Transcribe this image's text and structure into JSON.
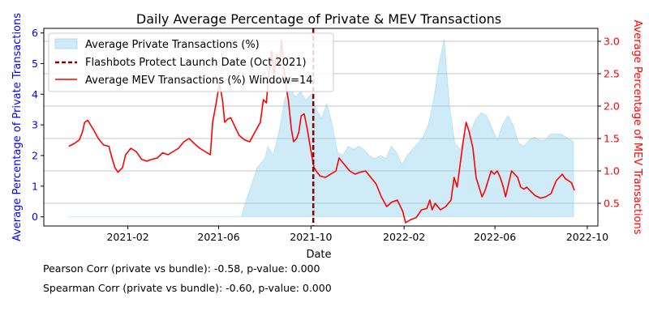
{
  "chart_data": {
    "type": "line",
    "title": "Daily Average Percentage of Private & MEV Transactions",
    "xlabel": "Date",
    "ylabel_left": "Average Percentage of Private Transactions",
    "ylabel_right": "Average Percentage of MEV Transactions",
    "left_axis_color": "#0000ff",
    "right_axis_color": "#ff0000",
    "xlim": [
      "2020-10-13",
      "2022-10-15"
    ],
    "ylim_left": [
      -0.3,
      6.15
    ],
    "ylim_right": [
      0.15,
      3.2
    ],
    "x_ticks": [
      "2021-02-01",
      "2021-06-01",
      "2021-10-01",
      "2022-02-01",
      "2022-06-01",
      "2022-10-01"
    ],
    "x_tick_labels": [
      "2021-02",
      "2021-06",
      "2021-10",
      "2022-02",
      "2022-06",
      "2022-10"
    ],
    "y_ticks_left": [
      0,
      1,
      2,
      3,
      4,
      5,
      6
    ],
    "y_ticks_right": [
      0.5,
      1.0,
      1.5,
      2.0,
      2.5,
      3.0
    ],
    "grid": "horizontal lines at right-axis ticks",
    "legend_position": "top-left",
    "series": [
      {
        "name": "Average Private Transactions (%)",
        "kind": "area",
        "axis": "left",
        "color": "#87ceeb",
        "alpha": 0.4,
        "points": [
          [
            "2020-11-15",
            0.0
          ],
          [
            "2021-07-01",
            0.0
          ],
          [
            "2021-07-08",
            0.6
          ],
          [
            "2021-07-15",
            1.1
          ],
          [
            "2021-07-22",
            1.6
          ],
          [
            "2021-08-01",
            1.9
          ],
          [
            "2021-08-05",
            2.3
          ],
          [
            "2021-08-12",
            2.0
          ],
          [
            "2021-08-20",
            2.8
          ],
          [
            "2021-08-27",
            3.8
          ],
          [
            "2021-09-03",
            4.3
          ],
          [
            "2021-09-10",
            3.9
          ],
          [
            "2021-09-17",
            4.1
          ],
          [
            "2021-09-24",
            3.8
          ],
          [
            "2021-10-01",
            4.0
          ],
          [
            "2021-10-08",
            3.5
          ],
          [
            "2021-10-15",
            3.2
          ],
          [
            "2021-10-22",
            3.7
          ],
          [
            "2021-10-29",
            3.0
          ],
          [
            "2021-11-05",
            2.1
          ],
          [
            "2021-11-12",
            2.0
          ],
          [
            "2021-11-19",
            2.3
          ],
          [
            "2021-11-26",
            2.2
          ],
          [
            "2021-12-03",
            2.3
          ],
          [
            "2021-12-10",
            2.2
          ],
          [
            "2021-12-17",
            2.0
          ],
          [
            "2021-12-24",
            1.9
          ],
          [
            "2022-01-01",
            2.0
          ],
          [
            "2022-01-08",
            1.9
          ],
          [
            "2022-01-15",
            2.3
          ],
          [
            "2022-01-22",
            2.1
          ],
          [
            "2022-01-29",
            1.7
          ],
          [
            "2022-02-05",
            2.0
          ],
          [
            "2022-02-12",
            2.2
          ],
          [
            "2022-02-19",
            2.4
          ],
          [
            "2022-02-26",
            2.6
          ],
          [
            "2022-03-05",
            3.0
          ],
          [
            "2022-03-12",
            3.8
          ],
          [
            "2022-03-19",
            5.0
          ],
          [
            "2022-03-26",
            5.8
          ],
          [
            "2022-04-02",
            3.6
          ],
          [
            "2022-04-09",
            2.4
          ],
          [
            "2022-04-16",
            2.2
          ],
          [
            "2022-04-23",
            2.7
          ],
          [
            "2022-04-30",
            2.8
          ],
          [
            "2022-05-07",
            3.2
          ],
          [
            "2022-05-14",
            3.4
          ],
          [
            "2022-05-21",
            3.3
          ],
          [
            "2022-05-28",
            2.9
          ],
          [
            "2022-06-04",
            2.5
          ],
          [
            "2022-06-11",
            3.0
          ],
          [
            "2022-06-18",
            3.3
          ],
          [
            "2022-06-25",
            3.0
          ],
          [
            "2022-07-02",
            2.4
          ],
          [
            "2022-07-09",
            2.3
          ],
          [
            "2022-07-16",
            2.5
          ],
          [
            "2022-07-23",
            2.6
          ],
          [
            "2022-07-30",
            2.5
          ],
          [
            "2022-08-06",
            2.5
          ],
          [
            "2022-08-13",
            2.7
          ],
          [
            "2022-08-20",
            2.7
          ],
          [
            "2022-08-27",
            2.7
          ],
          [
            "2022-09-03",
            2.6
          ],
          [
            "2022-09-10",
            2.5
          ],
          [
            "2022-09-13",
            2.45
          ]
        ]
      },
      {
        "name": "Average MEV Transactions (%) Window=14",
        "kind": "line",
        "axis": "right",
        "color": "#ff0000",
        "points": [
          [
            "2020-11-15",
            1.38
          ],
          [
            "2020-11-22",
            1.42
          ],
          [
            "2020-11-29",
            1.48
          ],
          [
            "2020-12-03",
            1.6
          ],
          [
            "2020-12-06",
            1.75
          ],
          [
            "2020-12-10",
            1.78
          ],
          [
            "2020-12-17",
            1.65
          ],
          [
            "2020-12-24",
            1.5
          ],
          [
            "2020-12-31",
            1.4
          ],
          [
            "2021-01-07",
            1.38
          ],
          [
            "2021-01-11",
            1.2
          ],
          [
            "2021-01-15",
            1.05
          ],
          [
            "2021-01-19",
            0.98
          ],
          [
            "2021-01-25",
            1.05
          ],
          [
            "2021-01-29",
            1.25
          ],
          [
            "2021-02-05",
            1.35
          ],
          [
            "2021-02-12",
            1.3
          ],
          [
            "2021-02-19",
            1.18
          ],
          [
            "2021-02-26",
            1.15
          ],
          [
            "2021-03-05",
            1.18
          ],
          [
            "2021-03-12",
            1.2
          ],
          [
            "2021-03-19",
            1.28
          ],
          [
            "2021-03-26",
            1.25
          ],
          [
            "2021-04-02",
            1.3
          ],
          [
            "2021-04-09",
            1.35
          ],
          [
            "2021-04-16",
            1.45
          ],
          [
            "2021-04-23",
            1.5
          ],
          [
            "2021-04-30",
            1.42
          ],
          [
            "2021-05-07",
            1.35
          ],
          [
            "2021-05-14",
            1.3
          ],
          [
            "2021-05-21",
            1.25
          ],
          [
            "2021-05-24",
            1.75
          ],
          [
            "2021-05-28",
            2.0
          ],
          [
            "2021-06-02",
            2.35
          ],
          [
            "2021-06-06",
            2.1
          ],
          [
            "2021-06-09",
            1.75
          ],
          [
            "2021-06-13",
            1.8
          ],
          [
            "2021-06-17",
            1.82
          ],
          [
            "2021-06-21",
            1.72
          ],
          [
            "2021-06-28",
            1.55
          ],
          [
            "2021-07-05",
            1.48
          ],
          [
            "2021-07-12",
            1.45
          ],
          [
            "2021-07-19",
            1.6
          ],
          [
            "2021-07-26",
            1.75
          ],
          [
            "2021-07-30",
            2.1
          ],
          [
            "2021-08-03",
            2.05
          ],
          [
            "2021-08-07",
            2.6
          ],
          [
            "2021-08-10",
            2.85
          ],
          [
            "2021-08-13",
            2.5
          ],
          [
            "2021-08-17",
            2.8
          ],
          [
            "2021-08-20",
            2.6
          ],
          [
            "2021-08-23",
            3.02
          ],
          [
            "2021-08-26",
            2.6
          ],
          [
            "2021-08-29",
            2.3
          ],
          [
            "2021-09-01",
            2.1
          ],
          [
            "2021-09-05",
            1.65
          ],
          [
            "2021-09-08",
            1.45
          ],
          [
            "2021-09-12",
            1.5
          ],
          [
            "2021-09-15",
            1.6
          ],
          [
            "2021-09-18",
            1.85
          ],
          [
            "2021-09-22",
            1.88
          ],
          [
            "2021-09-26",
            1.65
          ],
          [
            "2021-10-01",
            1.3
          ],
          [
            "2021-10-05",
            1.05
          ],
          [
            "2021-10-09",
            0.98
          ],
          [
            "2021-10-13",
            0.92
          ],
          [
            "2021-10-20",
            0.9
          ],
          [
            "2021-10-27",
            0.95
          ],
          [
            "2021-11-03",
            1.0
          ],
          [
            "2021-11-07",
            1.2
          ],
          [
            "2021-11-14",
            1.1
          ],
          [
            "2021-11-21",
            1.0
          ],
          [
            "2021-11-28",
            0.95
          ],
          [
            "2021-12-05",
            0.98
          ],
          [
            "2021-12-12",
            1.0
          ],
          [
            "2021-12-19",
            0.9
          ],
          [
            "2021-12-26",
            0.8
          ],
          [
            "2022-01-02",
            0.6
          ],
          [
            "2022-01-09",
            0.45
          ],
          [
            "2022-01-16",
            0.52
          ],
          [
            "2022-01-23",
            0.55
          ],
          [
            "2022-01-30",
            0.38
          ],
          [
            "2022-02-03",
            0.2
          ],
          [
            "2022-02-10",
            0.25
          ],
          [
            "2022-02-17",
            0.28
          ],
          [
            "2022-02-24",
            0.4
          ],
          [
            "2022-03-03",
            0.42
          ],
          [
            "2022-03-07",
            0.55
          ],
          [
            "2022-03-10",
            0.4
          ],
          [
            "2022-03-14",
            0.5
          ],
          [
            "2022-03-21",
            0.4
          ],
          [
            "2022-03-28",
            0.45
          ],
          [
            "2022-04-04",
            0.55
          ],
          [
            "2022-04-08",
            0.9
          ],
          [
            "2022-04-12",
            0.75
          ],
          [
            "2022-04-16",
            1.1
          ],
          [
            "2022-04-20",
            1.45
          ],
          [
            "2022-04-24",
            1.75
          ],
          [
            "2022-04-28",
            1.6
          ],
          [
            "2022-05-03",
            1.35
          ],
          [
            "2022-05-07",
            0.9
          ],
          [
            "2022-05-11",
            0.75
          ],
          [
            "2022-05-15",
            0.6
          ],
          [
            "2022-05-19",
            0.7
          ],
          [
            "2022-05-23",
            0.85
          ],
          [
            "2022-05-27",
            1.0
          ],
          [
            "2022-05-31",
            0.95
          ],
          [
            "2022-06-04",
            1.0
          ],
          [
            "2022-06-08",
            0.9
          ],
          [
            "2022-06-12",
            0.75
          ],
          [
            "2022-06-15",
            0.6
          ],
          [
            "2022-06-19",
            0.8
          ],
          [
            "2022-06-23",
            1.0
          ],
          [
            "2022-06-27",
            0.95
          ],
          [
            "2022-07-01",
            0.9
          ],
          [
            "2022-07-05",
            0.75
          ],
          [
            "2022-07-09",
            0.72
          ],
          [
            "2022-07-13",
            0.75
          ],
          [
            "2022-07-17",
            0.7
          ],
          [
            "2022-07-24",
            0.62
          ],
          [
            "2022-07-31",
            0.58
          ],
          [
            "2022-08-07",
            0.6
          ],
          [
            "2022-08-14",
            0.65
          ],
          [
            "2022-08-21",
            0.85
          ],
          [
            "2022-08-25",
            0.9
          ],
          [
            "2022-08-29",
            0.95
          ],
          [
            "2022-09-02",
            0.88
          ],
          [
            "2022-09-06",
            0.85
          ],
          [
            "2022-09-10",
            0.82
          ],
          [
            "2022-09-14",
            0.7
          ]
        ]
      },
      {
        "name": "Flashbots Protect Launch Date (Oct 2021)",
        "kind": "vline",
        "color": "#8b0000",
        "x": "2021-10-04"
      }
    ],
    "annotations": [
      "Pearson Corr (private vs bundle): -0.58, p-value: 0.000",
      "Spearman Corr (private vs bundle): -0.60, p-value: 0.000"
    ]
  }
}
